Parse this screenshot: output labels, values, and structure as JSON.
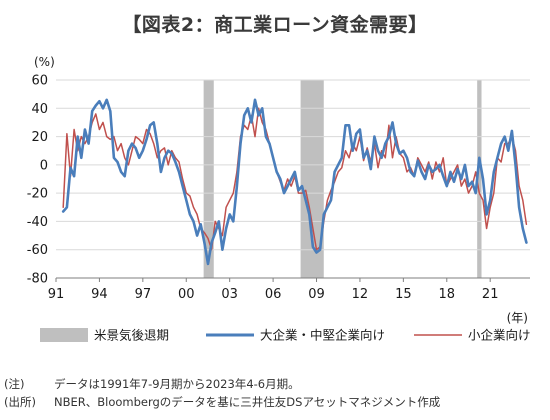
{
  "title": "【図表2：商工業ローン資金需要】",
  "notes": [
    {
      "label": "(注)",
      "text": "データは1991年7-9月期から2023年4-6月期。"
    },
    {
      "label": "(出所)",
      "text": "NBER、Bloombergのデータを基に三井住友DSアセットマネジメント作成"
    }
  ],
  "chart_data": {
    "type": "line",
    "y_unit_label": "(%)",
    "x_unit_label": "(年)",
    "ylim": [
      -80,
      60
    ],
    "yticks": [
      60,
      40,
      20,
      0,
      -20,
      -40,
      -60,
      -80
    ],
    "xlim": [
      1991.0,
      2023.75
    ],
    "xtick_labels": [
      "91",
      "94",
      "97",
      "00",
      "03",
      "06",
      "09",
      "12",
      "15",
      "18",
      "21"
    ],
    "xtick_years": [
      1991,
      1994,
      1997,
      2000,
      2003,
      2006,
      2009,
      2012,
      2015,
      2018,
      2021
    ],
    "recessions": [
      {
        "start": 2001.2,
        "end": 2001.9
      },
      {
        "start": 2007.9,
        "end": 2009.5
      },
      {
        "start": 2020.1,
        "end": 2020.4
      }
    ],
    "colors": {
      "large": "#4a7ebb",
      "small": "#c0504d",
      "recession": "#bfbfbf"
    },
    "legend": [
      {
        "label": "米景気後退期",
        "key": "recession"
      },
      {
        "label": "大企業・中堅企業向け",
        "key": "large"
      },
      {
        "label": "小企業向け",
        "key": "small"
      }
    ],
    "series": [
      {
        "name": "大企業・中堅企業向け",
        "key": "large",
        "points": [
          [
            1991.5,
            -33
          ],
          [
            1991.75,
            -30
          ],
          [
            1992.0,
            -2
          ],
          [
            1992.25,
            -8
          ],
          [
            1992.5,
            20
          ],
          [
            1992.75,
            5
          ],
          [
            1993.0,
            25
          ],
          [
            1993.25,
            15
          ],
          [
            1993.5,
            38
          ],
          [
            1993.75,
            42
          ],
          [
            1994.0,
            45
          ],
          [
            1994.25,
            40
          ],
          [
            1994.5,
            46
          ],
          [
            1994.75,
            38
          ],
          [
            1995.0,
            5
          ],
          [
            1995.25,
            2
          ],
          [
            1995.5,
            -5
          ],
          [
            1995.75,
            -8
          ],
          [
            1996.0,
            10
          ],
          [
            1996.25,
            15
          ],
          [
            1996.5,
            12
          ],
          [
            1996.75,
            5
          ],
          [
            1997.0,
            10
          ],
          [
            1997.25,
            18
          ],
          [
            1997.5,
            28
          ],
          [
            1997.75,
            30
          ],
          [
            1998.0,
            15
          ],
          [
            1998.25,
            -5
          ],
          [
            1998.5,
            5
          ],
          [
            1998.75,
            10
          ],
          [
            1999.0,
            8
          ],
          [
            1999.25,
            2
          ],
          [
            1999.5,
            -5
          ],
          [
            1999.75,
            -15
          ],
          [
            2000.0,
            -25
          ],
          [
            2000.25,
            -35
          ],
          [
            2000.5,
            -40
          ],
          [
            2000.75,
            -50
          ],
          [
            2001.0,
            -42
          ],
          [
            2001.25,
            -55
          ],
          [
            2001.5,
            -70
          ],
          [
            2001.75,
            -55
          ],
          [
            2002.0,
            -48
          ],
          [
            2002.25,
            -40
          ],
          [
            2002.5,
            -60
          ],
          [
            2002.75,
            -45
          ],
          [
            2003.0,
            -35
          ],
          [
            2003.25,
            -40
          ],
          [
            2003.5,
            -15
          ],
          [
            2003.75,
            15
          ],
          [
            2004.0,
            35
          ],
          [
            2004.25,
            40
          ],
          [
            2004.5,
            30
          ],
          [
            2004.75,
            46
          ],
          [
            2005.0,
            35
          ],
          [
            2005.25,
            40
          ],
          [
            2005.5,
            20
          ],
          [
            2005.75,
            15
          ],
          [
            2006.0,
            5
          ],
          [
            2006.25,
            -5
          ],
          [
            2006.5,
            -10
          ],
          [
            2006.75,
            -20
          ],
          [
            2007.0,
            -15
          ],
          [
            2007.25,
            -10
          ],
          [
            2007.5,
            -5
          ],
          [
            2007.75,
            -18
          ],
          [
            2008.0,
            -15
          ],
          [
            2008.25,
            -25
          ],
          [
            2008.5,
            -35
          ],
          [
            2008.75,
            -58
          ],
          [
            2009.0,
            -62
          ],
          [
            2009.25,
            -60
          ],
          [
            2009.5,
            -35
          ],
          [
            2009.75,
            -30
          ],
          [
            2010.0,
            -25
          ],
          [
            2010.25,
            -5
          ],
          [
            2010.5,
            0
          ],
          [
            2010.75,
            5
          ],
          [
            2011.0,
            28
          ],
          [
            2011.25,
            28
          ],
          [
            2011.5,
            10
          ],
          [
            2011.75,
            22
          ],
          [
            2012.0,
            25
          ],
          [
            2012.25,
            5
          ],
          [
            2012.5,
            10
          ],
          [
            2012.75,
            -3
          ],
          [
            2013.0,
            20
          ],
          [
            2013.25,
            10
          ],
          [
            2013.5,
            5
          ],
          [
            2013.75,
            15
          ],
          [
            2014.0,
            20
          ],
          [
            2014.25,
            30
          ],
          [
            2014.5,
            15
          ],
          [
            2014.75,
            8
          ],
          [
            2015.0,
            10
          ],
          [
            2015.25,
            5
          ],
          [
            2015.5,
            -5
          ],
          [
            2015.75,
            -8
          ],
          [
            2016.0,
            3
          ],
          [
            2016.25,
            -5
          ],
          [
            2016.5,
            -10
          ],
          [
            2016.75,
            0
          ],
          [
            2017.0,
            -5
          ],
          [
            2017.25,
            -3
          ],
          [
            2017.5,
            0
          ],
          [
            2017.75,
            -8
          ],
          [
            2018.0,
            -15
          ],
          [
            2018.25,
            -5
          ],
          [
            2018.5,
            -12
          ],
          [
            2018.75,
            -3
          ],
          [
            2019.0,
            -10
          ],
          [
            2019.25,
            0
          ],
          [
            2019.5,
            -15
          ],
          [
            2019.75,
            -12
          ],
          [
            2020.0,
            -20
          ],
          [
            2020.25,
            5
          ],
          [
            2020.5,
            -10
          ],
          [
            2020.75,
            -35
          ],
          [
            2021.0,
            -25
          ],
          [
            2021.25,
            -5
          ],
          [
            2021.5,
            5
          ],
          [
            2021.75,
            15
          ],
          [
            2022.0,
            20
          ],
          [
            2022.25,
            10
          ],
          [
            2022.5,
            24
          ],
          [
            2022.75,
            0
          ],
          [
            2023.0,
            -30
          ],
          [
            2023.25,
            -45
          ],
          [
            2023.5,
            -55
          ]
        ]
      },
      {
        "name": "小企業向け",
        "key": "small",
        "points": [
          [
            1991.5,
            -30
          ],
          [
            1991.75,
            22
          ],
          [
            1992.0,
            -8
          ],
          [
            1992.25,
            25
          ],
          [
            1992.5,
            10
          ],
          [
            1992.75,
            20
          ],
          [
            1993.0,
            15
          ],
          [
            1993.25,
            20
          ],
          [
            1993.5,
            30
          ],
          [
            1993.75,
            36
          ],
          [
            1994.0,
            25
          ],
          [
            1994.25,
            30
          ],
          [
            1994.5,
            20
          ],
          [
            1994.75,
            18
          ],
          [
            1995.0,
            20
          ],
          [
            1995.25,
            10
          ],
          [
            1995.5,
            15
          ],
          [
            1995.75,
            5
          ],
          [
            1996.0,
            0
          ],
          [
            1996.25,
            10
          ],
          [
            1996.5,
            20
          ],
          [
            1996.75,
            18
          ],
          [
            1997.0,
            15
          ],
          [
            1997.25,
            25
          ],
          [
            1997.5,
            22
          ],
          [
            1997.75,
            15
          ],
          [
            1998.0,
            5
          ],
          [
            1998.25,
            10
          ],
          [
            1998.5,
            12
          ],
          [
            1998.75,
            0
          ],
          [
            1999.0,
            10
          ],
          [
            1999.25,
            5
          ],
          [
            1999.5,
            2
          ],
          [
            1999.75,
            -10
          ],
          [
            2000.0,
            -20
          ],
          [
            2000.25,
            -22
          ],
          [
            2000.5,
            -30
          ],
          [
            2000.75,
            -35
          ],
          [
            2001.0,
            -45
          ],
          [
            2001.25,
            -48
          ],
          [
            2001.5,
            -52
          ],
          [
            2001.75,
            -60
          ],
          [
            2002.0,
            -40
          ],
          [
            2002.25,
            -45
          ],
          [
            2002.5,
            -50
          ],
          [
            2002.75,
            -30
          ],
          [
            2003.0,
            -25
          ],
          [
            2003.25,
            -20
          ],
          [
            2003.5,
            -5
          ],
          [
            2003.75,
            20
          ],
          [
            2004.0,
            28
          ],
          [
            2004.25,
            25
          ],
          [
            2004.5,
            35
          ],
          [
            2004.75,
            20
          ],
          [
            2005.0,
            40
          ],
          [
            2005.25,
            30
          ],
          [
            2005.5,
            25
          ],
          [
            2005.75,
            15
          ],
          [
            2006.0,
            5
          ],
          [
            2006.25,
            -5
          ],
          [
            2006.5,
            -12
          ],
          [
            2006.75,
            -18
          ],
          [
            2007.0,
            -10
          ],
          [
            2007.25,
            -15
          ],
          [
            2007.5,
            -8
          ],
          [
            2007.75,
            -20
          ],
          [
            2008.0,
            -20
          ],
          [
            2008.25,
            -18
          ],
          [
            2008.5,
            -30
          ],
          [
            2008.75,
            -45
          ],
          [
            2009.0,
            -60
          ],
          [
            2009.25,
            -58
          ],
          [
            2009.5,
            -40
          ],
          [
            2009.75,
            -25
          ],
          [
            2010.0,
            -18
          ],
          [
            2010.25,
            -12
          ],
          [
            2010.5,
            -5
          ],
          [
            2010.75,
            -2
          ],
          [
            2011.0,
            10
          ],
          [
            2011.25,
            5
          ],
          [
            2011.5,
            15
          ],
          [
            2011.75,
            10
          ],
          [
            2012.0,
            20
          ],
          [
            2012.25,
            3
          ],
          [
            2012.5,
            12
          ],
          [
            2012.75,
            2
          ],
          [
            2013.0,
            15
          ],
          [
            2013.25,
            -2
          ],
          [
            2013.5,
            10
          ],
          [
            2013.75,
            5
          ],
          [
            2014.0,
            28
          ],
          [
            2014.25,
            5
          ],
          [
            2014.5,
            20
          ],
          [
            2014.75,
            8
          ],
          [
            2015.0,
            5
          ],
          [
            2015.25,
            -5
          ],
          [
            2015.5,
            -2
          ],
          [
            2015.75,
            -8
          ],
          [
            2016.0,
            5
          ],
          [
            2016.25,
            0
          ],
          [
            2016.5,
            -5
          ],
          [
            2016.75,
            2
          ],
          [
            2017.0,
            -10
          ],
          [
            2017.25,
            2
          ],
          [
            2017.5,
            -5
          ],
          [
            2017.75,
            5
          ],
          [
            2018.0,
            -15
          ],
          [
            2018.25,
            -10
          ],
          [
            2018.5,
            -5
          ],
          [
            2018.75,
            0
          ],
          [
            2019.0,
            -15
          ],
          [
            2019.25,
            -10
          ],
          [
            2019.5,
            -20
          ],
          [
            2019.75,
            -15
          ],
          [
            2020.0,
            -5
          ],
          [
            2020.25,
            -20
          ],
          [
            2020.5,
            -25
          ],
          [
            2020.75,
            -45
          ],
          [
            2021.0,
            -30
          ],
          [
            2021.25,
            -20
          ],
          [
            2021.5,
            5
          ],
          [
            2021.75,
            2
          ],
          [
            2022.0,
            15
          ],
          [
            2022.25,
            15
          ],
          [
            2022.5,
            20
          ],
          [
            2022.75,
            10
          ],
          [
            2023.0,
            -15
          ],
          [
            2023.25,
            -25
          ],
          [
            2023.5,
            -42
          ]
        ]
      }
    ]
  }
}
